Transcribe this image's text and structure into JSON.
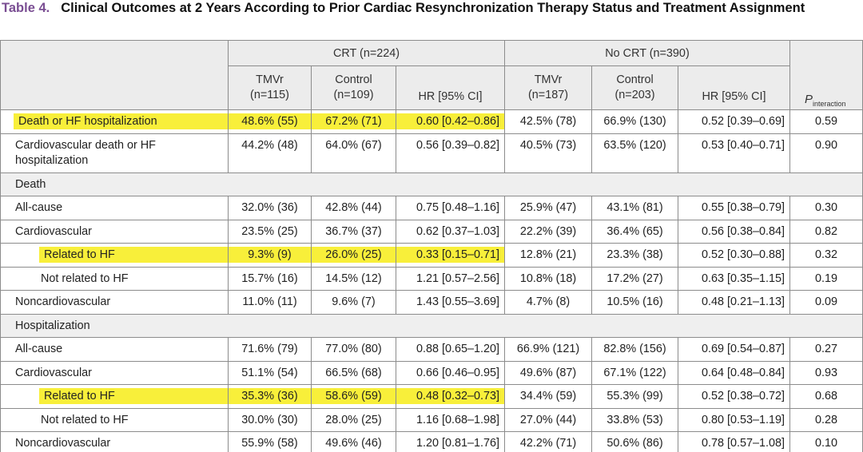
{
  "caption": {
    "number": "Table 4.",
    "title": "Clinical Outcomes at 2 Years According to Prior Cardiac Resynchronization Therapy Status and Treatment Assignment"
  },
  "colors": {
    "highlight": "#f8ef3a",
    "header_bg": "#ececec",
    "table_number": "#7a4e93"
  },
  "header": {
    "crt": "CRT (n=224)",
    "nocrt": "No CRT (n=390)",
    "cols": [
      {
        "line1": "TMVr",
        "line2": "(n=115)"
      },
      {
        "line1": "Control",
        "line2": "(n=109)"
      },
      {
        "line1": "HR [95% CI]",
        "line2": ""
      },
      {
        "line1": "TMVr",
        "line2": "(n=187)"
      },
      {
        "line1": "Control",
        "line2": "(n=203)"
      },
      {
        "line1": "HR [95% CI]",
        "line2": ""
      }
    ],
    "p_main": "P",
    "p_sub": "interaction"
  },
  "rows": [
    {
      "label": "Death or HF hospitalization",
      "c": [
        "48.6% (55)",
        "67.2% (71)",
        "0.60 [0.42–0.86]",
        "42.5% (78)",
        "66.9% (130)",
        "0.52 [0.39–0.69]",
        "0.59"
      ]
    },
    {
      "label": "Cardiovascular death or HF hospitalization",
      "c": [
        "44.2% (48)",
        "64.0% (67)",
        "0.56 [0.39–0.82]",
        "40.5% (73)",
        "63.5% (120)",
        "0.53 [0.40–0.71]",
        "0.90"
      ]
    },
    {
      "label": "Death"
    },
    {
      "label": "All-cause",
      "c": [
        "32.0% (36)",
        "42.8% (44)",
        "0.75 [0.48–1.16]",
        "25.9% (47)",
        "43.1% (81)",
        "0.55 [0.38–0.79]",
        "0.30"
      ]
    },
    {
      "label": "Cardiovascular",
      "c": [
        "23.5% (25)",
        "36.7% (37)",
        "0.62 [0.37–1.03]",
        "22.2% (39)",
        "36.4% (65)",
        "0.56 [0.38–0.84]",
        "0.82"
      ]
    },
    {
      "label": "Related to HF",
      "c": [
        "9.3% (9)",
        "26.0% (25)",
        "0.33 [0.15–0.71]",
        "12.8% (21)",
        "23.3% (38)",
        "0.52 [0.30–0.88]",
        "0.32"
      ]
    },
    {
      "label": "Not related to HF",
      "c": [
        "15.7% (16)",
        "14.5% (12)",
        "1.21 [0.57–2.56]",
        "10.8% (18)",
        "17.2% (27)",
        "0.63 [0.35–1.15]",
        "0.19"
      ]
    },
    {
      "label": "Noncardiovascular",
      "c": [
        "11.0% (11)",
        "9.6% (7)",
        "1.43 [0.55–3.69]",
        "4.7% (8)",
        "10.5% (16)",
        "0.48 [0.21–1.13]",
        "0.09"
      ]
    },
    {
      "label": "Hospitalization"
    },
    {
      "label": "All-cause",
      "c": [
        "71.6% (79)",
        "77.0% (80)",
        "0.88 [0.65–1.20]",
        "66.9% (121)",
        "82.8% (156)",
        "0.69 [0.54–0.87]",
        "0.27"
      ]
    },
    {
      "label": "Cardiovascular",
      "c": [
        "51.1% (54)",
        "66.5% (68)",
        "0.66 [0.46–0.95]",
        "49.6% (87)",
        "67.1% (122)",
        "0.64 [0.48–0.84]",
        "0.93"
      ]
    },
    {
      "label": "Related to HF",
      "c": [
        "35.3% (36)",
        "58.6% (59)",
        "0.48 [0.32–0.73]",
        "34.4% (59)",
        "55.3% (99)",
        "0.52 [0.38–0.72]",
        "0.68"
      ]
    },
    {
      "label": "Not related to HF",
      "c": [
        "30.0% (30)",
        "28.0% (25)",
        "1.16 [0.68–1.98]",
        "27.0% (44)",
        "33.8% (53)",
        "0.80 [0.53–1.19]",
        "0.28"
      ]
    },
    {
      "label": "Noncardiovascular",
      "c": [
        "55.9% (58)",
        "49.6% (46)",
        "1.20 [0.81–1.76]",
        "42.2% (71)",
        "50.6% (86)",
        "0.78 [0.57–1.08]",
        "0.10"
      ]
    }
  ]
}
